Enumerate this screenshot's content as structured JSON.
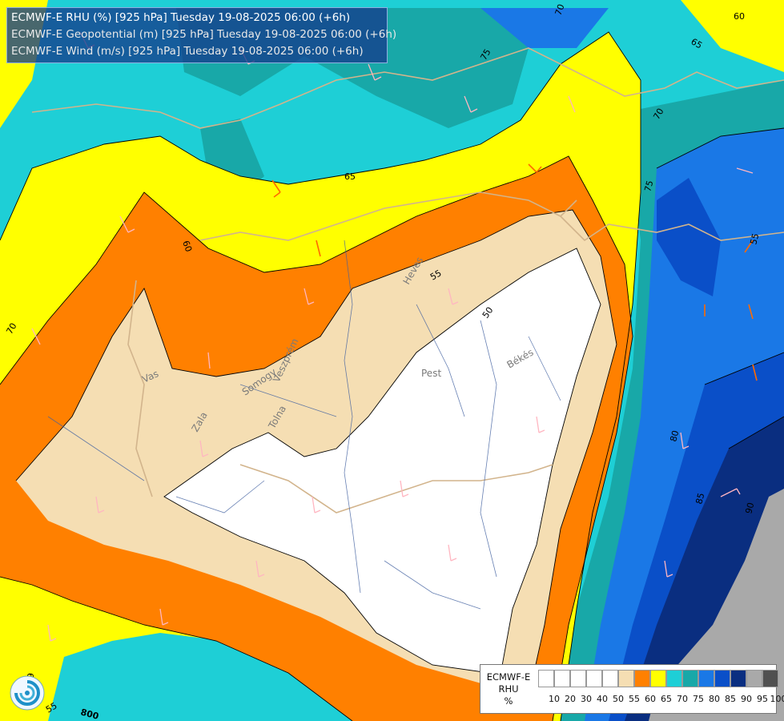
{
  "titles": [
    "ECMWF-E RHU (%) [925 hPa] Tuesday 19-08-2025 06:00 (+6h)",
    "ECMWF-E Geopotential (m) [925 hPa] Tuesday 19-08-2025 06:00 (+6h)",
    "ECMWF-E Wind (m/s) [925 hPa] Tuesday 19-08-2025 06:00 (+6h)"
  ],
  "legend": {
    "title_lines": [
      "ECMWF-E",
      "RHU",
      "%"
    ],
    "levels": [
      "10",
      "20",
      "30",
      "40",
      "50",
      "55",
      "60",
      "65",
      "70",
      "75",
      "80",
      "85",
      "90",
      "95",
      "100"
    ],
    "colors": [
      "#ffffff",
      "#ffffff",
      "#ffffff",
      "#ffffff",
      "#ffffff",
      "#f5deb3",
      "#ff8000",
      "#ffff00",
      "#1ecfd6",
      "#18a8a8",
      "#1a78e6",
      "#0a4fc8",
      "#0a2e80",
      "#a9a9a9",
      "#505050"
    ]
  },
  "contour_labels": [
    "50",
    "55",
    "55",
    "60",
    "60",
    "65",
    "65",
    "70",
    "70",
    "70",
    "75",
    "75",
    "80",
    "85",
    "90",
    "60",
    "55",
    "800"
  ],
  "region_labels": [
    "Heves",
    "Pest",
    "Békés",
    "Vas",
    "Zala",
    "Somogy",
    "Tolna",
    "Veszprém"
  ],
  "colors": {
    "rhu_50": "#ffffff",
    "rhu_55": "#f5deb3",
    "rhu_60": "#ff8000",
    "rhu_65": "#ffff00",
    "rhu_70": "#1ecfd6",
    "rhu_75": "#18a8a8",
    "rhu_80": "#1a78e6",
    "rhu_85": "#0a4fc8",
    "rhu_90": "#0a2e80",
    "rhu_95": "#a9a9a9",
    "border": "#d2b48c",
    "river": "#4060a0",
    "wind_barb": "#ffb6c1",
    "wind_barb_strong": "#ff6a00"
  },
  "logo_icon": "ecmwf-swirl-icon"
}
